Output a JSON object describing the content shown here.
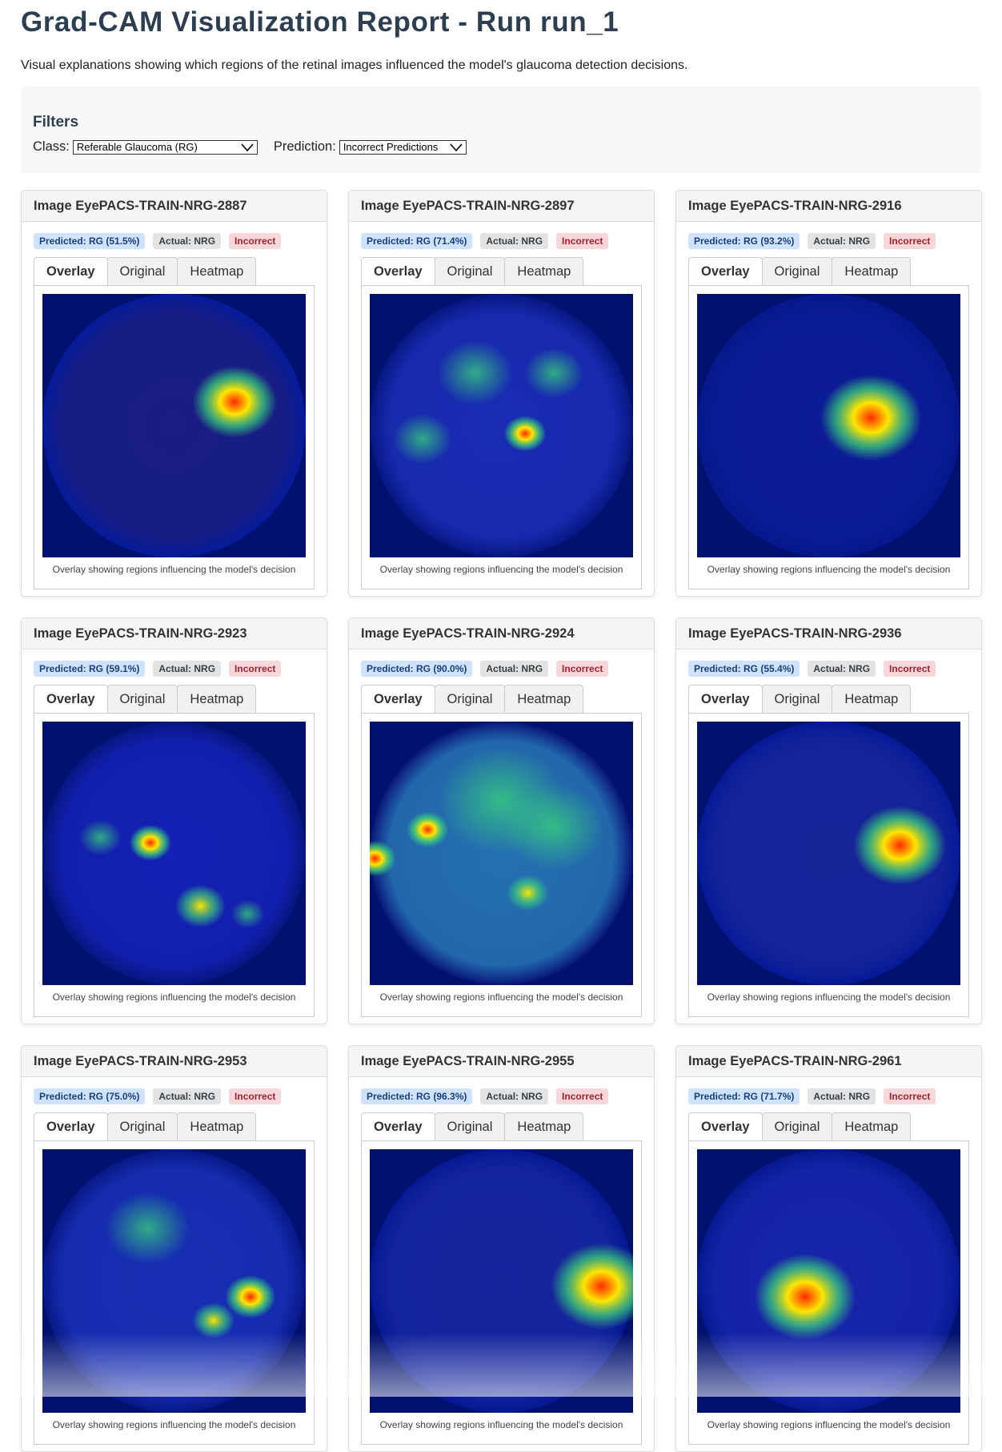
{
  "report": {
    "title": "Grad-CAM Visualization Report - Run run_1",
    "subtitle": "Visual explanations showing which regions of the retinal images influenced the model's glaucoma detection decisions."
  },
  "filters": {
    "heading": "Filters",
    "class_label": "Class:",
    "class_value": "Referable Glaucoma (RG)",
    "prediction_label": "Prediction:",
    "prediction_value": "Incorrect Predictions"
  },
  "tabs": {
    "overlay": "Overlay",
    "original": "Original",
    "heatmap": "Heatmap"
  },
  "caption": "Overlay showing regions influencing the model's decision",
  "colors": {
    "heatmap_hot": "#ff2a00",
    "heatmap_warm": "#ffe600",
    "heatmap_mid": "#39d67a",
    "heatmap_cold": "#00106e"
  },
  "cards": [
    {
      "title": "Image EyePACS-TRAIN-NRG-2887",
      "predicted": "Predicted: RG (51.5%)",
      "actual": "Actual: NRG",
      "status": "Incorrect"
    },
    {
      "title": "Image EyePACS-TRAIN-NRG-2897",
      "predicted": "Predicted: RG (71.4%)",
      "actual": "Actual: NRG",
      "status": "Incorrect"
    },
    {
      "title": "Image EyePACS-TRAIN-NRG-2916",
      "predicted": "Predicted: RG (93.2%)",
      "actual": "Actual: NRG",
      "status": "Incorrect"
    },
    {
      "title": "Image EyePACS-TRAIN-NRG-2923",
      "predicted": "Predicted: RG (59.1%)",
      "actual": "Actual: NRG",
      "status": "Incorrect"
    },
    {
      "title": "Image EyePACS-TRAIN-NRG-2924",
      "predicted": "Predicted: RG (90.0%)",
      "actual": "Actual: NRG",
      "status": "Incorrect"
    },
    {
      "title": "Image EyePACS-TRAIN-NRG-2936",
      "predicted": "Predicted: RG (55.4%)",
      "actual": "Actual: NRG",
      "status": "Incorrect"
    },
    {
      "title": "Image EyePACS-TRAIN-NRG-2953",
      "predicted": "Predicted: RG (75.0%)",
      "actual": "Actual: NRG",
      "status": "Incorrect"
    },
    {
      "title": "Image EyePACS-TRAIN-NRG-2955",
      "predicted": "Predicted: RG (96.3%)",
      "actual": "Actual: NRG",
      "status": "Incorrect"
    },
    {
      "title": "Image EyePACS-TRAIN-NRG-2961",
      "predicted": "Predicted: RG (71.7%)",
      "actual": "Actual: NRG",
      "status": "Incorrect"
    }
  ]
}
